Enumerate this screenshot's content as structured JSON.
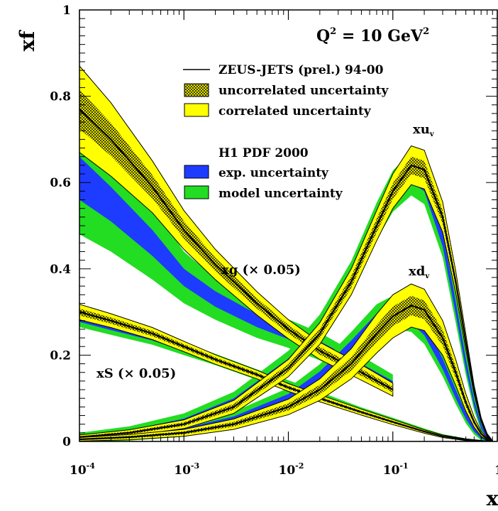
{
  "chart_data": {
    "type": "area",
    "title": "",
    "annotation_q2": {
      "base": "Q",
      "exp1": "2",
      "mid": " = 10 GeV",
      "exp2": "2"
    },
    "xlabel": "x",
    "ylabel": "xf",
    "xscale": "log",
    "xlim": [
      0.0001,
      1
    ],
    "ylim": [
      0,
      1
    ],
    "x_ticks": [
      {
        "base": "10",
        "exp": "-4"
      },
      {
        "base": "10",
        "exp": "-3"
      },
      {
        "base": "10",
        "exp": "-2"
      },
      {
        "base": "10",
        "exp": "-1"
      },
      {
        "base": "1",
        "exp": ""
      }
    ],
    "y_ticks": [
      "0",
      "0.2",
      "0.4",
      "0.6",
      "0.8",
      "1"
    ],
    "legend": {
      "placement": "top-center",
      "group1_title": "ZEUS-JETS (prel.) 94-00",
      "group1_items": [
        "uncorrelated uncertainty",
        "correlated uncertainty"
      ],
      "group2_title": "H1 PDF 2000",
      "group2_items": [
        "exp. uncertainty",
        "model uncertainty"
      ]
    },
    "colors": {
      "correlated": "#ffff00",
      "exp": "#1e3cff",
      "model": "#22dd22",
      "line": "#000000"
    },
    "curve_labels": {
      "xuv": {
        "base": "xu",
        "sub": "v"
      },
      "xdv": {
        "base": "xd",
        "sub": "v"
      },
      "xg": "xg (× 0.05)",
      "xS": "xS (× 0.05)"
    },
    "series": [
      {
        "key": "xg",
        "label_ref": "xg",
        "x": [
          0.0001,
          0.0002,
          0.0005,
          0.001,
          0.002,
          0.005,
          0.01,
          0.02,
          0.05,
          0.1
        ],
        "zeus": [
          0.77,
          0.7,
          0.59,
          0.49,
          0.41,
          0.32,
          0.26,
          0.21,
          0.16,
          0.12
        ],
        "zeus_unc": [
          0.1,
          0.085,
          0.06,
          0.045,
          0.035,
          0.027,
          0.022,
          0.02,
          0.018,
          0.015
        ],
        "h1": [
          0.61,
          0.55,
          0.46,
          0.38,
          0.33,
          0.28,
          0.25,
          0.22,
          0.17,
          0.13
        ],
        "h1_exp": [
          0.05,
          0.04,
          0.03,
          0.02,
          0.018,
          0.015,
          0.013,
          0.012,
          0.01,
          0.01
        ],
        "h1_model": [
          0.08,
          0.07,
          0.055,
          0.04,
          0.03,
          0.025,
          0.02,
          0.02,
          0.018,
          0.015
        ]
      },
      {
        "key": "xS",
        "label_ref": "xS",
        "x": [
          0.0001,
          0.0002,
          0.0005,
          0.001,
          0.002,
          0.005,
          0.01,
          0.02,
          0.05,
          0.1,
          0.2,
          0.3,
          0.5,
          0.8
        ],
        "zeus": [
          0.3,
          0.28,
          0.25,
          0.22,
          0.19,
          0.155,
          0.125,
          0.1,
          0.068,
          0.045,
          0.023,
          0.012,
          0.004,
          0.0
        ],
        "zeus_unc": [
          0.018,
          0.016,
          0.014,
          0.012,
          0.011,
          0.01,
          0.009,
          0.008,
          0.007,
          0.006,
          0.004,
          0.003,
          0.002,
          0.001
        ],
        "h1": [
          0.285,
          0.265,
          0.24,
          0.215,
          0.19,
          0.155,
          0.13,
          0.105,
          0.07,
          0.048,
          0.025,
          0.013,
          0.004,
          0.0
        ],
        "h1_exp": [
          0.008,
          0.007,
          0.006,
          0.006,
          0.005,
          0.005,
          0.005,
          0.004,
          0.004,
          0.003,
          0.002,
          0.002,
          0.001,
          0.001
        ],
        "h1_model": [
          0.012,
          0.011,
          0.01,
          0.009,
          0.008,
          0.007,
          0.007,
          0.006,
          0.005,
          0.004,
          0.003,
          0.002,
          0.002,
          0.001
        ]
      },
      {
        "key": "xuv",
        "label_ref": "xuv",
        "x": [
          0.0001,
          0.0003,
          0.001,
          0.003,
          0.01,
          0.02,
          0.04,
          0.07,
          0.1,
          0.15,
          0.2,
          0.3,
          0.4,
          0.5,
          0.6,
          0.7,
          0.8,
          0.9
        ],
        "zeus": [
          0.01,
          0.02,
          0.04,
          0.08,
          0.17,
          0.25,
          0.37,
          0.5,
          0.58,
          0.64,
          0.63,
          0.52,
          0.37,
          0.23,
          0.12,
          0.05,
          0.015,
          0.0
        ],
        "zeus_unc": [
          0.005,
          0.007,
          0.01,
          0.015,
          0.02,
          0.025,
          0.03,
          0.035,
          0.04,
          0.045,
          0.045,
          0.035,
          0.025,
          0.018,
          0.01,
          0.005,
          0.003,
          0.002
        ],
        "h1": [
          0.01,
          0.02,
          0.045,
          0.09,
          0.18,
          0.26,
          0.38,
          0.51,
          0.58,
          0.62,
          0.6,
          0.47,
          0.31,
          0.18,
          0.09,
          0.035,
          0.01,
          0.0
        ],
        "h1_exp": [
          0.004,
          0.006,
          0.008,
          0.01,
          0.012,
          0.014,
          0.016,
          0.018,
          0.02,
          0.02,
          0.02,
          0.018,
          0.015,
          0.012,
          0.008,
          0.005,
          0.003,
          0.001
        ],
        "h1_model": [
          0.006,
          0.009,
          0.012,
          0.015,
          0.018,
          0.02,
          0.022,
          0.025,
          0.028,
          0.03,
          0.03,
          0.025,
          0.02,
          0.015,
          0.01,
          0.006,
          0.004,
          0.002
        ]
      },
      {
        "key": "xdv",
        "label_ref": "xdv",
        "x": [
          0.0001,
          0.0003,
          0.001,
          0.003,
          0.01,
          0.02,
          0.04,
          0.07,
          0.1,
          0.15,
          0.2,
          0.3,
          0.4,
          0.5,
          0.6,
          0.7,
          0.8,
          0.9
        ],
        "zeus": [
          0.005,
          0.01,
          0.02,
          0.04,
          0.08,
          0.12,
          0.18,
          0.25,
          0.29,
          0.315,
          0.305,
          0.24,
          0.16,
          0.09,
          0.045,
          0.018,
          0.005,
          0.0
        ],
        "zeus_unc": [
          0.004,
          0.006,
          0.008,
          0.012,
          0.018,
          0.025,
          0.035,
          0.045,
          0.05,
          0.05,
          0.048,
          0.04,
          0.03,
          0.02,
          0.012,
          0.006,
          0.003,
          0.002
        ],
        "h1": [
          0.006,
          0.012,
          0.025,
          0.05,
          0.1,
          0.15,
          0.22,
          0.28,
          0.3,
          0.29,
          0.26,
          0.18,
          0.11,
          0.06,
          0.028,
          0.01,
          0.003,
          0.0
        ],
        "h1_exp": [
          0.003,
          0.004,
          0.006,
          0.008,
          0.01,
          0.012,
          0.014,
          0.016,
          0.016,
          0.015,
          0.014,
          0.012,
          0.01,
          0.008,
          0.005,
          0.003,
          0.002,
          0.001
        ],
        "h1_model": [
          0.004,
          0.006,
          0.008,
          0.011,
          0.014,
          0.017,
          0.02,
          0.022,
          0.022,
          0.021,
          0.02,
          0.017,
          0.013,
          0.01,
          0.007,
          0.004,
          0.003,
          0.002
        ]
      }
    ]
  }
}
